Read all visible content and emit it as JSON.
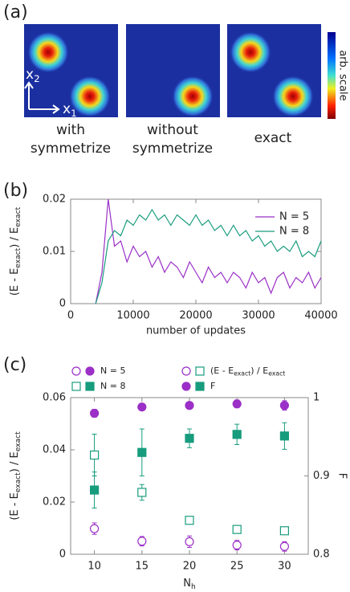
{
  "panel_a": {
    "label": "(a)",
    "x2": [
      "x",
      "2"
    ],
    "x1": [
      "x",
      "1"
    ],
    "captions": [
      [
        "with",
        "symmetrize"
      ],
      [
        "without",
        "symmetrize"
      ],
      [
        "exact"
      ]
    ],
    "colorbar_label": "arb. scale"
  },
  "chart_data": [
    {
      "type": "line",
      "panel_label": "(b)",
      "x_label": "number of updates",
      "y_label": [
        "(E - E",
        "exact",
        ") / E",
        "exact"
      ],
      "x": [
        4000,
        5000,
        6000,
        7000,
        8000,
        9000,
        10000,
        11000,
        12000,
        13000,
        14000,
        15000,
        16000,
        17000,
        18000,
        19000,
        20000,
        21000,
        22000,
        23000,
        24000,
        25000,
        26000,
        27000,
        28000,
        29000,
        30000,
        31000,
        32000,
        33000,
        34000,
        35000,
        36000,
        37000,
        38000,
        39000,
        40000
      ],
      "xlim": [
        0,
        40000
      ],
      "xticks": [
        0,
        10000,
        20000,
        30000,
        40000
      ],
      "ylim": [
        0,
        0.02
      ],
      "yticks": [
        0,
        0.01,
        0.02
      ],
      "legend_position": "upper right",
      "series": [
        {
          "name": "N = 5",
          "color": "#9b2fc7",
          "values": [
            0,
            0.006,
            0.02,
            0.011,
            0.012,
            0.008,
            0.011,
            0.009,
            0.01,
            0.007,
            0.009,
            0.006,
            0.008,
            0.007,
            0.005,
            0.008,
            0.006,
            0.004,
            0.007,
            0.005,
            0.006,
            0.004,
            0.006,
            0.005,
            0.003,
            0.006,
            0.004,
            0.005,
            0.002,
            0.005,
            0.006,
            0.003,
            0.005,
            0.004,
            0.006,
            0.003,
            0.005
          ]
        },
        {
          "name": "N = 8",
          "color": "#179c7d",
          "values": [
            0,
            0.004,
            0.012,
            0.014,
            0.013,
            0.016,
            0.015,
            0.017,
            0.016,
            0.018,
            0.016,
            0.017,
            0.015,
            0.017,
            0.016,
            0.015,
            0.017,
            0.015,
            0.016,
            0.014,
            0.015,
            0.013,
            0.015,
            0.013,
            0.014,
            0.012,
            0.013,
            0.011,
            0.012,
            0.01,
            0.011,
            0.01,
            0.012,
            0.009,
            0.01,
            0.009,
            0.012
          ]
        }
      ]
    },
    {
      "type": "scatter",
      "panel_label": "(c)",
      "x_label": [
        "N",
        "h"
      ],
      "y_label": [
        "(E - E",
        "exact",
        ") / E",
        "exact"
      ],
      "y2_label": "F",
      "x": [
        10,
        15,
        20,
        25,
        30
      ],
      "xlim": [
        7.5,
        32.5
      ],
      "xticks": [
        10,
        15,
        20,
        25,
        30
      ],
      "ylim": [
        0,
        0.06
      ],
      "yticks": [
        0,
        0.02,
        0.04,
        0.06
      ],
      "y2lim": [
        0.8,
        1
      ],
      "y2ticks": [
        0.8,
        0.9,
        1
      ],
      "legend": [
        [
          "N = 5"
        ],
        [
          "N = 8"
        ],
        [
          "(E - E",
          "exact",
          ") / E",
          "exact"
        ],
        [
          "F"
        ]
      ],
      "series": [
        {
          "marker": "open-circle",
          "color": "#9b2fc7",
          "values": [
            0.0098,
            0.005,
            0.0048,
            0.0035,
            0.003
          ],
          "errors": [
            0.0022,
            0.0018,
            0.0022,
            0.0018,
            0.0018
          ]
        },
        {
          "marker": "filled-circle",
          "color": "#9b2fc7",
          "axis": "y2",
          "values": [
            0.98,
            0.988,
            0.99,
            0.992,
            0.99
          ],
          "errors": [
            0.005,
            0.004,
            0.004,
            0.005,
            0.006
          ]
        },
        {
          "marker": "open-square",
          "color": "#179c7d",
          "values": [
            0.038,
            0.0237,
            0.013,
            0.0095,
            0.009
          ],
          "errors": [
            0.008,
            0.003,
            0.001,
            0.001,
            0.001
          ]
        },
        {
          "marker": "filled-square",
          "color": "#179c7d",
          "axis": "y2",
          "values": [
            0.882,
            0.93,
            0.948,
            0.953,
            0.951
          ],
          "errors": [
            0.023,
            0.03,
            0.012,
            0.013,
            0.017
          ]
        }
      ]
    }
  ]
}
